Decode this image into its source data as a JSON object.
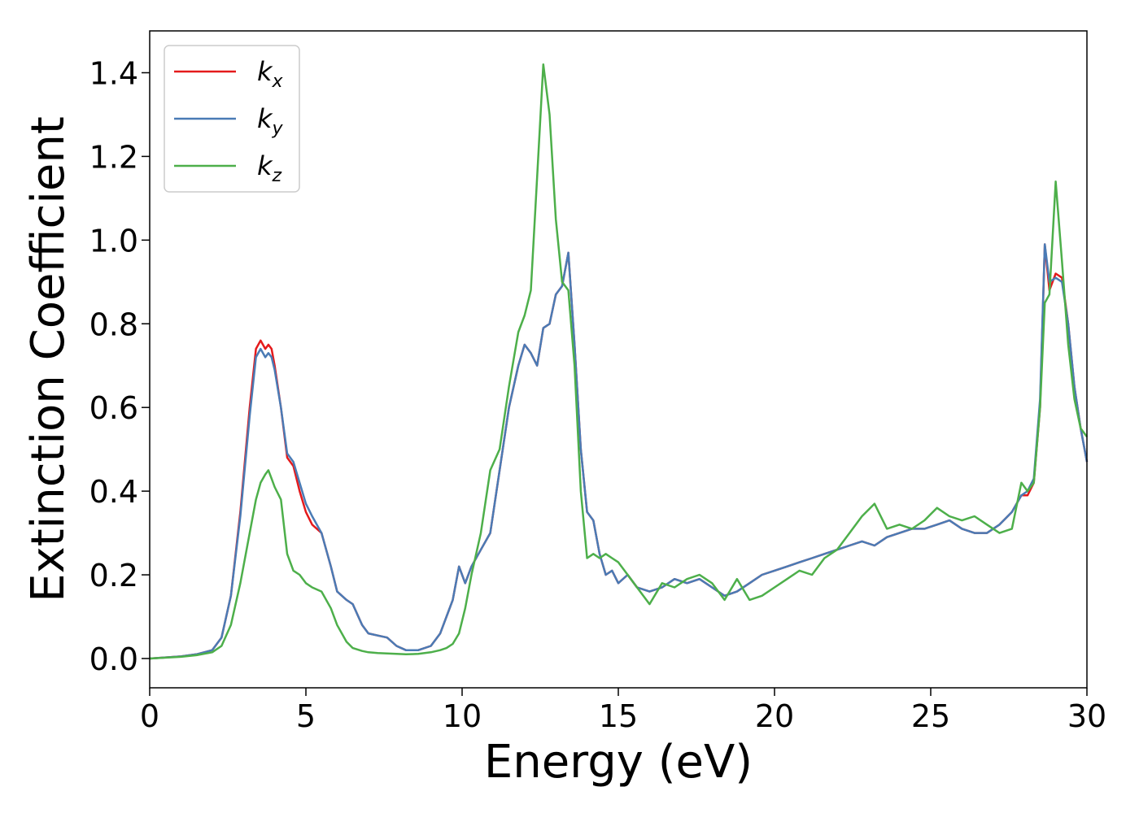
{
  "chart_data": {
    "type": "line",
    "xlabel": "Energy (eV)",
    "ylabel": "Extinction Coefficient",
    "xlim": [
      0,
      30
    ],
    "ylim": [
      -0.07,
      1.5
    ],
    "xticks": [
      "0",
      "5",
      "10",
      "15",
      "20",
      "25",
      "30"
    ],
    "yticks": [
      "0.0",
      "0.2",
      "0.4",
      "0.6",
      "0.8",
      "1.0",
      "1.2",
      "1.4"
    ],
    "grid": false,
    "legend_position": "top-left",
    "series": [
      {
        "name": "k",
        "subscript": "x",
        "color": "#e41a1c",
        "x": [
          0,
          1,
          1.5,
          2,
          2.3,
          2.6,
          2.9,
          3.2,
          3.4,
          3.55,
          3.7,
          3.8,
          3.9,
          4.0,
          4.2,
          4.4,
          4.6,
          4.8,
          5.0,
          5.2,
          5.5,
          5.8,
          6.0,
          6.3,
          6.5,
          6.8,
          7.0,
          7.3,
          7.6,
          7.9,
          8.2,
          8.6,
          9.0,
          9.3,
          9.5,
          9.7,
          9.9,
          10.1,
          10.3,
          10.6,
          10.9,
          11.2,
          11.5,
          11.8,
          12.0,
          12.2,
          12.4,
          12.6,
          12.8,
          13.0,
          13.2,
          13.4,
          13.6,
          13.8,
          14.0,
          14.2,
          14.4,
          14.6,
          14.8,
          15.0,
          15.3,
          15.6,
          16.0,
          16.4,
          16.8,
          17.2,
          17.6,
          18.0,
          18.4,
          18.8,
          19.2,
          19.6,
          20.0,
          20.4,
          20.8,
          21.2,
          21.6,
          22.0,
          22.4,
          22.8,
          23.2,
          23.6,
          24.0,
          24.4,
          24.8,
          25.2,
          25.6,
          26.0,
          26.4,
          26.8,
          27.2,
          27.6,
          27.9,
          28.1,
          28.3,
          28.5,
          28.65,
          28.8,
          29.0,
          29.2,
          29.4,
          29.6,
          29.8,
          30.0
        ],
        "values": [
          0,
          0.005,
          0.01,
          0.02,
          0.05,
          0.15,
          0.35,
          0.6,
          0.74,
          0.76,
          0.74,
          0.75,
          0.74,
          0.7,
          0.6,
          0.48,
          0.46,
          0.4,
          0.35,
          0.32,
          0.3,
          0.22,
          0.16,
          0.14,
          0.13,
          0.08,
          0.06,
          0.055,
          0.05,
          0.03,
          0.02,
          0.02,
          0.03,
          0.06,
          0.1,
          0.14,
          0.22,
          0.18,
          0.22,
          0.26,
          0.3,
          0.45,
          0.6,
          0.7,
          0.75,
          0.73,
          0.7,
          0.79,
          0.8,
          0.87,
          0.89,
          0.97,
          0.75,
          0.5,
          0.35,
          0.33,
          0.25,
          0.2,
          0.21,
          0.18,
          0.2,
          0.17,
          0.16,
          0.17,
          0.19,
          0.18,
          0.19,
          0.17,
          0.15,
          0.16,
          0.18,
          0.2,
          0.21,
          0.22,
          0.23,
          0.24,
          0.25,
          0.26,
          0.27,
          0.28,
          0.27,
          0.29,
          0.3,
          0.31,
          0.31,
          0.32,
          0.33,
          0.31,
          0.3,
          0.3,
          0.32,
          0.35,
          0.39,
          0.39,
          0.42,
          0.6,
          0.99,
          0.88,
          0.92,
          0.91,
          0.8,
          0.65,
          0.55,
          0.47
        ]
      },
      {
        "name": "k",
        "subscript": "y",
        "color": "#4a7bb5",
        "x": [
          0,
          1,
          1.5,
          2,
          2.3,
          2.6,
          2.9,
          3.2,
          3.4,
          3.55,
          3.7,
          3.8,
          3.9,
          4.0,
          4.2,
          4.4,
          4.6,
          4.8,
          5.0,
          5.2,
          5.5,
          5.8,
          6.0,
          6.3,
          6.5,
          6.8,
          7.0,
          7.3,
          7.6,
          7.9,
          8.2,
          8.6,
          9.0,
          9.3,
          9.5,
          9.7,
          9.9,
          10.1,
          10.3,
          10.6,
          10.9,
          11.2,
          11.5,
          11.8,
          12.0,
          12.2,
          12.4,
          12.6,
          12.8,
          13.0,
          13.2,
          13.4,
          13.6,
          13.8,
          14.0,
          14.2,
          14.4,
          14.6,
          14.8,
          15.0,
          15.3,
          15.6,
          16.0,
          16.4,
          16.8,
          17.2,
          17.6,
          18.0,
          18.4,
          18.8,
          19.2,
          19.6,
          20.0,
          20.4,
          20.8,
          21.2,
          21.6,
          22.0,
          22.4,
          22.8,
          23.2,
          23.6,
          24.0,
          24.4,
          24.8,
          25.2,
          25.6,
          26.0,
          26.4,
          26.8,
          27.2,
          27.6,
          27.9,
          28.1,
          28.3,
          28.5,
          28.65,
          28.8,
          29.0,
          29.2,
          29.4,
          29.6,
          29.8,
          30.0
        ],
        "values": [
          0,
          0.005,
          0.01,
          0.02,
          0.05,
          0.15,
          0.34,
          0.58,
          0.72,
          0.74,
          0.72,
          0.73,
          0.72,
          0.69,
          0.6,
          0.49,
          0.47,
          0.42,
          0.37,
          0.34,
          0.3,
          0.22,
          0.16,
          0.14,
          0.13,
          0.08,
          0.06,
          0.055,
          0.05,
          0.03,
          0.02,
          0.02,
          0.03,
          0.06,
          0.1,
          0.14,
          0.22,
          0.18,
          0.22,
          0.26,
          0.3,
          0.45,
          0.6,
          0.7,
          0.75,
          0.73,
          0.7,
          0.79,
          0.8,
          0.87,
          0.89,
          0.97,
          0.75,
          0.5,
          0.35,
          0.33,
          0.25,
          0.2,
          0.21,
          0.18,
          0.2,
          0.17,
          0.16,
          0.17,
          0.19,
          0.18,
          0.19,
          0.17,
          0.15,
          0.16,
          0.18,
          0.2,
          0.21,
          0.22,
          0.23,
          0.24,
          0.25,
          0.26,
          0.27,
          0.28,
          0.27,
          0.29,
          0.3,
          0.31,
          0.31,
          0.32,
          0.33,
          0.31,
          0.3,
          0.3,
          0.32,
          0.35,
          0.39,
          0.4,
          0.43,
          0.62,
          0.99,
          0.9,
          0.91,
          0.9,
          0.8,
          0.65,
          0.55,
          0.47
        ]
      },
      {
        "name": "k",
        "subscript": "z",
        "color": "#4daf4a",
        "x": [
          0,
          1,
          1.5,
          2,
          2.3,
          2.6,
          2.9,
          3.2,
          3.4,
          3.55,
          3.7,
          3.8,
          3.9,
          4.0,
          4.2,
          4.4,
          4.6,
          4.8,
          5.0,
          5.2,
          5.5,
          5.8,
          6.0,
          6.3,
          6.5,
          6.8,
          7.0,
          7.3,
          7.6,
          7.9,
          8.2,
          8.6,
          9.0,
          9.3,
          9.5,
          9.7,
          9.9,
          10.1,
          10.3,
          10.6,
          10.9,
          11.2,
          11.5,
          11.8,
          12.0,
          12.2,
          12.4,
          12.6,
          12.8,
          13.0,
          13.2,
          13.4,
          13.6,
          13.8,
          14.0,
          14.2,
          14.4,
          14.6,
          14.8,
          15.0,
          15.3,
          15.6,
          16.0,
          16.4,
          16.8,
          17.2,
          17.6,
          18.0,
          18.4,
          18.8,
          19.2,
          19.6,
          20.0,
          20.4,
          20.8,
          21.2,
          21.6,
          22.0,
          22.4,
          22.8,
          23.2,
          23.6,
          24.0,
          24.4,
          24.8,
          25.2,
          25.6,
          26.0,
          26.4,
          26.8,
          27.2,
          27.6,
          27.9,
          28.1,
          28.3,
          28.5,
          28.65,
          28.8,
          29.0,
          29.2,
          29.4,
          29.6,
          29.8,
          30.0
        ],
        "values": [
          0,
          0.004,
          0.008,
          0.015,
          0.03,
          0.08,
          0.18,
          0.3,
          0.38,
          0.42,
          0.44,
          0.45,
          0.43,
          0.41,
          0.38,
          0.25,
          0.21,
          0.2,
          0.18,
          0.17,
          0.16,
          0.12,
          0.08,
          0.04,
          0.025,
          0.018,
          0.015,
          0.013,
          0.012,
          0.011,
          0.01,
          0.011,
          0.015,
          0.02,
          0.025,
          0.035,
          0.06,
          0.12,
          0.2,
          0.3,
          0.45,
          0.5,
          0.65,
          0.78,
          0.82,
          0.88,
          1.15,
          1.42,
          1.3,
          1.05,
          0.9,
          0.88,
          0.7,
          0.4,
          0.24,
          0.25,
          0.24,
          0.25,
          0.24,
          0.23,
          0.2,
          0.17,
          0.13,
          0.18,
          0.17,
          0.19,
          0.2,
          0.18,
          0.14,
          0.19,
          0.14,
          0.15,
          0.17,
          0.19,
          0.21,
          0.2,
          0.24,
          0.26,
          0.3,
          0.34,
          0.37,
          0.31,
          0.32,
          0.31,
          0.33,
          0.36,
          0.34,
          0.33,
          0.34,
          0.32,
          0.3,
          0.31,
          0.42,
          0.4,
          0.42,
          0.6,
          0.85,
          0.87,
          1.14,
          0.95,
          0.75,
          0.62,
          0.55,
          0.53
        ]
      }
    ]
  }
}
